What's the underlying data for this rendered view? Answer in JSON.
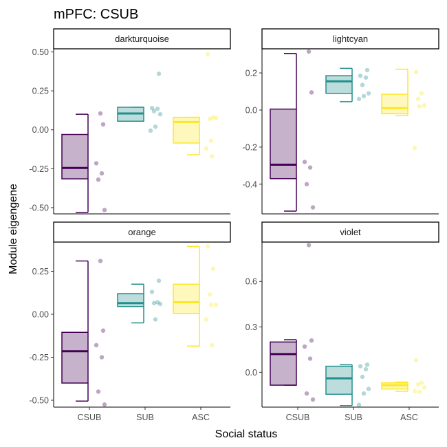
{
  "chart_data": {
    "type": "boxplot",
    "title": "mPFC: CSUB",
    "xlabel": "Social status",
    "ylabel": "Module eigengene",
    "categories": [
      "CSUB",
      "SUB",
      "ASC"
    ],
    "colors": {
      "CSUB": "#440154",
      "SUB": "#21908C",
      "ASC": "#FDE725"
    },
    "panels": [
      {
        "name": "darkturquoise",
        "ylim": [
          -0.54,
          0.52
        ],
        "yticks": [
          0.5,
          0.25,
          0.0,
          -0.25,
          -0.5
        ],
        "yticklabels": [
          "0.50",
          "0.25",
          "0.00",
          "-0.25",
          "-0.50"
        ],
        "boxes": [
          {
            "group": "CSUB",
            "min": -0.53,
            "q1": -0.315,
            "median": -0.245,
            "q3": -0.03,
            "max": 0.1,
            "points": [
              0.105,
              0.035,
              -0.215,
              -0.28,
              -0.32,
              -0.515
            ]
          },
          {
            "group": "SUB",
            "min": 0.055,
            "q1": 0.055,
            "median": 0.105,
            "q3": 0.145,
            "max": 0.145,
            "points": [
              0.36,
              0.14,
              0.135,
              0.12,
              0.1,
              0.02,
              -0.005
            ]
          },
          {
            "group": "ASC",
            "min": -0.16,
            "q1": -0.085,
            "median": 0.05,
            "q3": 0.08,
            "max": 0.08,
            "points": [
              0.485,
              0.08,
              0.07,
              0.075,
              -0.07,
              -0.12,
              -0.17
            ]
          }
        ]
      },
      {
        "name": "lightcyan",
        "ylim": [
          -0.56,
          0.33
        ],
        "yticks": [
          0.2,
          0.0,
          -0.2,
          -0.4
        ],
        "yticklabels": [
          "0.2",
          "0.0",
          "-0.2",
          "-0.4"
        ],
        "boxes": [
          {
            "group": "CSUB",
            "min": -0.545,
            "q1": -0.37,
            "median": -0.295,
            "q3": 0.005,
            "max": 0.305,
            "points": [
              0.315,
              0.095,
              -0.28,
              -0.31,
              -0.4,
              -0.525
            ]
          },
          {
            "group": "SUB",
            "min": 0.045,
            "q1": 0.09,
            "median": 0.155,
            "q3": 0.185,
            "max": 0.225,
            "points": [
              0.215,
              0.185,
              0.175,
              0.135,
              0.09,
              0.075,
              0.06
            ]
          },
          {
            "group": "ASC",
            "min": -0.03,
            "q1": -0.02,
            "median": 0.01,
            "q3": 0.085,
            "max": 0.22,
            "points": [
              0.205,
              0.09,
              0.06,
              0.025,
              0.02,
              -0.205
            ]
          }
        ]
      },
      {
        "name": "orange",
        "ylim": [
          -0.54,
          0.42
        ],
        "yticks": [
          0.25,
          0.0,
          -0.25,
          -0.5
        ],
        "yticklabels": [
          "0.25",
          "0.00",
          "-0.25",
          "-0.50"
        ],
        "boxes": [
          {
            "group": "CSUB",
            "min": -0.505,
            "q1": -0.4,
            "median": -0.215,
            "q3": -0.105,
            "max": 0.31,
            "points": [
              0.31,
              -0.095,
              -0.18,
              -0.25,
              -0.45,
              -0.525
            ]
          },
          {
            "group": "SUB",
            "min": -0.05,
            "q1": 0.045,
            "median": 0.065,
            "q3": 0.12,
            "max": 0.175,
            "points": [
              0.195,
              0.13,
              0.07,
              0.065,
              0.06,
              -0.03
            ]
          },
          {
            "group": "ASC",
            "min": -0.185,
            "q1": 0.005,
            "median": 0.07,
            "q3": 0.175,
            "max": 0.395,
            "points": [
              0.395,
              0.265,
              0.115,
              0.055,
              0.055,
              -0.03,
              -0.18
            ]
          }
        ]
      },
      {
        "name": "violet",
        "ylim": [
          -0.23,
          0.86
        ],
        "yticks": [
          0.6,
          0.3,
          0.0
        ],
        "yticklabels": [
          "0.6",
          "0.3",
          "0.0"
        ],
        "boxes": [
          {
            "group": "CSUB",
            "min": -0.085,
            "q1": -0.085,
            "median": 0.12,
            "q3": 0.2,
            "max": 0.215,
            "points": [
              0.84,
              0.21,
              0.17,
              0.09,
              -0.14,
              -0.18
            ]
          },
          {
            "group": "SUB",
            "min": -0.22,
            "q1": -0.145,
            "median": -0.04,
            "q3": 0.04,
            "max": 0.05,
            "points": [
              0.05,
              0.04,
              0.02,
              -0.03,
              -0.11,
              -0.14,
              -0.215
            ]
          },
          {
            "group": "ASC",
            "min": -0.125,
            "q1": -0.11,
            "median": -0.085,
            "q3": -0.07,
            "max": -0.065,
            "points": [
              0.08,
              -0.07,
              -0.08,
              -0.1,
              -0.13,
              -0.125
            ]
          }
        ]
      }
    ]
  }
}
